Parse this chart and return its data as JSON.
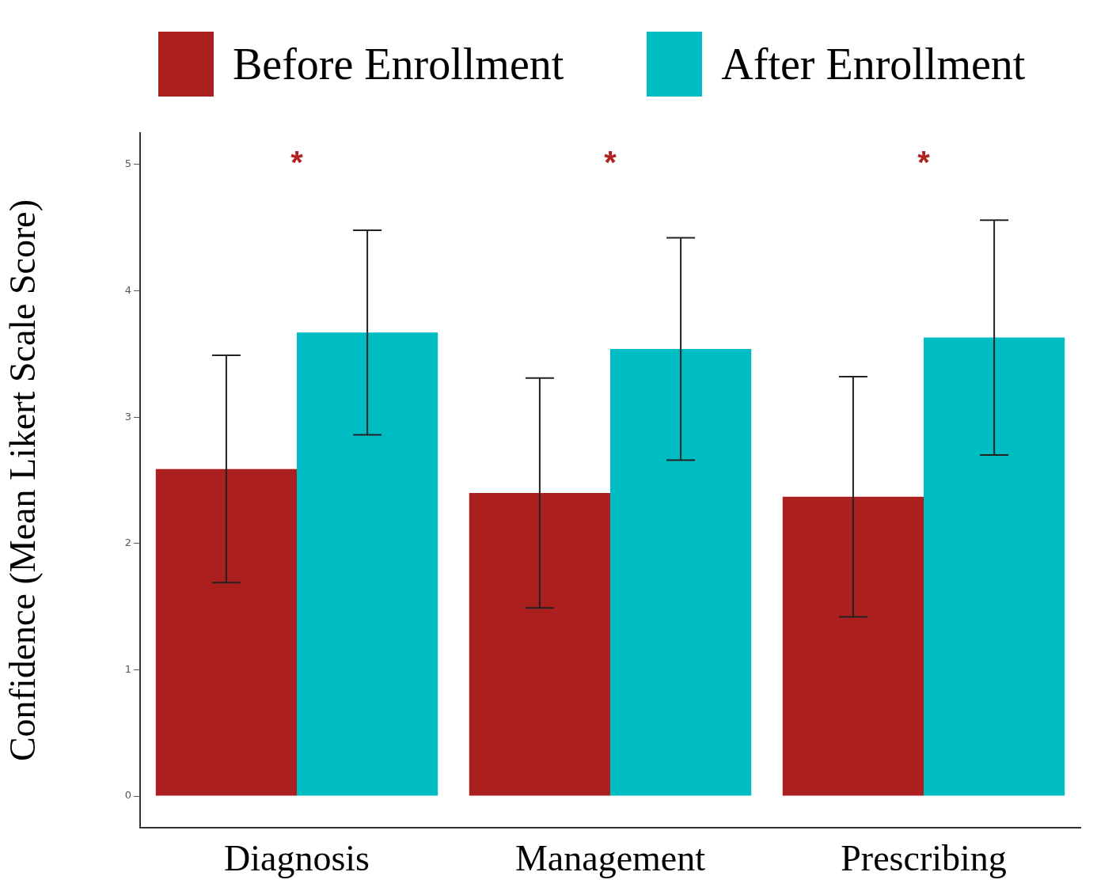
{
  "chart_data": {
    "type": "bar",
    "ylabel": "Confidence (Mean Likert Scale Score)",
    "categories": [
      "Diagnosis",
      "Management",
      "Prescribing"
    ],
    "series": [
      {
        "name": "Before Enrollment",
        "color": "#ab1f1f",
        "values": [
          2.59,
          2.4,
          2.37
        ],
        "errors": [
          0.9,
          0.91,
          0.95
        ]
      },
      {
        "name": "After Enrollment",
        "color": "#00bdc4",
        "values": [
          3.67,
          3.54,
          3.63
        ],
        "errors": [
          0.81,
          0.88,
          0.93
        ]
      }
    ],
    "ylim": [
      -0.25,
      5.25
    ],
    "yticks": [
      0,
      1,
      2,
      3,
      4,
      5
    ],
    "grid": false,
    "legend": "top",
    "annotations": [
      "*",
      "*",
      "*"
    ]
  }
}
